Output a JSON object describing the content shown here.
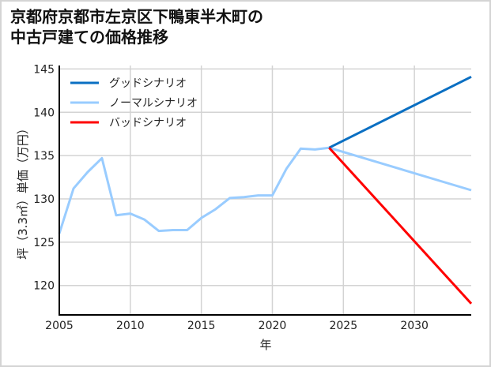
{
  "title": {
    "line1": "京都府京都市左京区下鴨東半木町の",
    "line2": "中古戸建ての価格推移"
  },
  "chart_data": {
    "type": "line",
    "title": "京都府京都市左京区下鴨東半木町の中古戸建ての価格推移",
    "xlabel": "年",
    "ylabel": "坪（3.3㎡）単価（万円）",
    "xlim": [
      2005,
      2034
    ],
    "ylim": [
      116.6,
      145.4
    ],
    "xticks": [
      2005,
      2010,
      2015,
      2020,
      2025,
      2030
    ],
    "yticks": [
      120,
      125,
      130,
      135,
      140,
      145
    ],
    "grid": true,
    "legend_position": "upper left",
    "series": [
      {
        "name": "グッドシナリオ",
        "color": "#0a6fc2",
        "x": [
          2024,
          2034
        ],
        "values": [
          135.9,
          144.1
        ]
      },
      {
        "name": "ノーマルシナリオ",
        "color": "#99ccff",
        "x": [
          2005,
          2006,
          2007,
          2008,
          2009,
          2010,
          2011,
          2012,
          2013,
          2014,
          2015,
          2016,
          2017,
          2018,
          2019,
          2020,
          2021,
          2022,
          2023,
          2024,
          2034
        ],
        "values": [
          126.0,
          131.2,
          133.1,
          134.7,
          128.1,
          128.3,
          127.6,
          126.3,
          126.4,
          126.4,
          127.8,
          128.8,
          130.1,
          130.2,
          130.4,
          130.4,
          133.5,
          135.8,
          135.7,
          135.9,
          131.0
        ]
      },
      {
        "name": "バッドシナリオ",
        "color": "#ff0000",
        "x": [
          2024,
          2034
        ],
        "values": [
          135.9,
          117.9
        ]
      }
    ]
  }
}
